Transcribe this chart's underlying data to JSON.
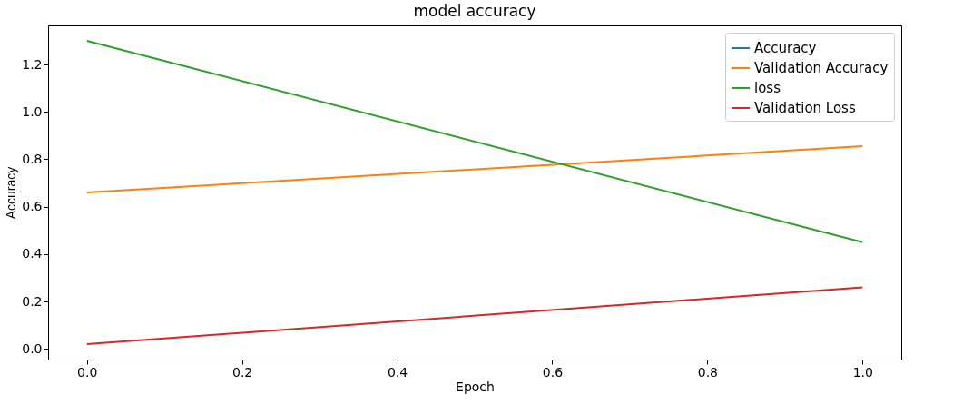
{
  "chart_data": {
    "type": "line",
    "title": "model accuracy",
    "xlabel": "Epoch",
    "ylabel": "Accuracy",
    "x": [
      0,
      1
    ],
    "series": [
      {
        "name": "Accuracy",
        "color": "#1f77b4",
        "values": [
          null,
          null
        ]
      },
      {
        "name": "Validation Accuracy",
        "color": "#ff7f0e",
        "values": [
          0.66,
          0.855
        ]
      },
      {
        "name": "loss",
        "color": "#2ca02c",
        "values": [
          1.3,
          0.45
        ]
      },
      {
        "name": "Validation Loss",
        "color": "#d62728",
        "values": [
          0.02,
          0.26
        ]
      }
    ],
    "xlim": [
      -0.05,
      1.05
    ],
    "xticks": [
      {
        "value": 0,
        "label": "0.0"
      },
      0.2,
      0.4,
      0.6,
      0.8,
      {
        "value": 1,
        "label": "1.0"
      }
    ],
    "ylim": [
      -0.045,
      1.365
    ],
    "yticks": [
      {
        "value": 0,
        "label": "0.0"
      },
      0.2,
      0.4,
      0.6,
      0.8,
      {
        "value": 1,
        "label": "1.0"
      },
      1.2
    ],
    "grid": false,
    "legend": "top right",
    "marker": "none",
    "line_style": "solid"
  }
}
